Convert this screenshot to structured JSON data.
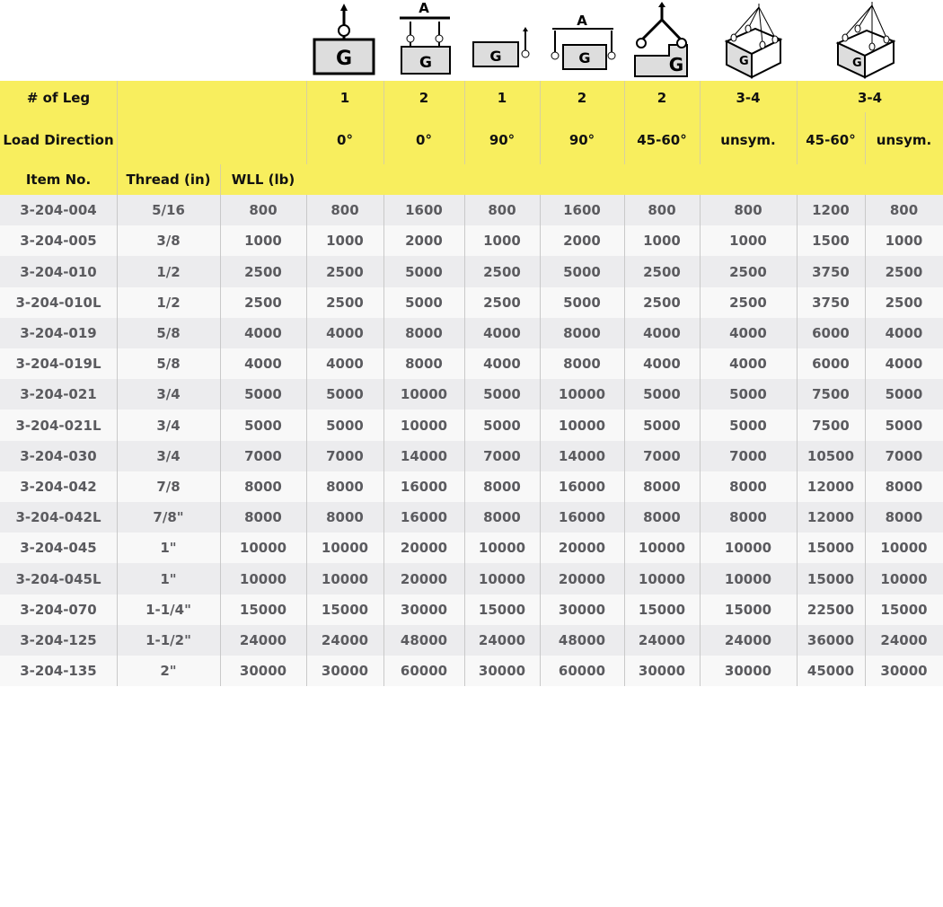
{
  "colors": {
    "header_bg": "#f8ee5e",
    "row_odd": "#ececee",
    "row_even": "#f8f8f8",
    "text": "#5b5b5f"
  },
  "icons": [
    "single-leg-vertical-icon",
    "two-leg-vertical-spreader-icon",
    "single-leg-side-icon",
    "two-leg-side-spreader-icon",
    "two-leg-angled-icon",
    "multi-leg-unsymmetric-icon",
    "multi-leg-angled-icon"
  ],
  "header": {
    "legs_label": "# of Leg",
    "direction_label": "Load Direction",
    "item_label": "Item No.",
    "thread_label": "Thread (in)",
    "wll_label": "WLL (lb)",
    "legs": [
      "1",
      "2",
      "1",
      "2",
      "2",
      "3-4",
      "3-4"
    ],
    "directions": [
      "0°",
      "0°",
      "90°",
      "90°",
      "45-60°",
      "unsym.",
      "45-60°",
      "unsym."
    ]
  },
  "rows": [
    [
      "3-204-004",
      "5/16",
      "800",
      "800",
      "1600",
      "800",
      "1600",
      "800",
      "800",
      "1200",
      "800"
    ],
    [
      "3-204-005",
      "3/8",
      "1000",
      "1000",
      "2000",
      "1000",
      "2000",
      "1000",
      "1000",
      "1500",
      "1000"
    ],
    [
      "3-204-010",
      "1/2",
      "2500",
      "2500",
      "5000",
      "2500",
      "5000",
      "2500",
      "2500",
      "3750",
      "2500"
    ],
    [
      "3-204-010L",
      "1/2",
      "2500",
      "2500",
      "5000",
      "2500",
      "5000",
      "2500",
      "2500",
      "3750",
      "2500"
    ],
    [
      "3-204-019",
      "5/8",
      "4000",
      "4000",
      "8000",
      "4000",
      "8000",
      "4000",
      "4000",
      "6000",
      "4000"
    ],
    [
      "3-204-019L",
      "5/8",
      "4000",
      "4000",
      "8000",
      "4000",
      "8000",
      "4000",
      "4000",
      "6000",
      "4000"
    ],
    [
      "3-204-021",
      "3/4",
      "5000",
      "5000",
      "10000",
      "5000",
      "10000",
      "5000",
      "5000",
      "7500",
      "5000"
    ],
    [
      "3-204-021L",
      "3/4",
      "5000",
      "5000",
      "10000",
      "5000",
      "10000",
      "5000",
      "5000",
      "7500",
      "5000"
    ],
    [
      "3-204-030",
      "3/4",
      "7000",
      "7000",
      "14000",
      "7000",
      "14000",
      "7000",
      "7000",
      "10500",
      "7000"
    ],
    [
      "3-204-042",
      "7/8",
      "8000",
      "8000",
      "16000",
      "8000",
      "16000",
      "8000",
      "8000",
      "12000",
      "8000"
    ],
    [
      "3-204-042L",
      "7/8\"",
      "8000",
      "8000",
      "16000",
      "8000",
      "16000",
      "8000",
      "8000",
      "12000",
      "8000"
    ],
    [
      "3-204-045",
      "1\"",
      "10000",
      "10000",
      "20000",
      "10000",
      "20000",
      "10000",
      "10000",
      "15000",
      "10000"
    ],
    [
      "3-204-045L",
      "1\"",
      "10000",
      "10000",
      "20000",
      "10000",
      "20000",
      "10000",
      "10000",
      "15000",
      "10000"
    ],
    [
      "3-204-070",
      "1-1/4\"",
      "15000",
      "15000",
      "30000",
      "15000",
      "30000",
      "15000",
      "15000",
      "22500",
      "15000"
    ],
    [
      "3-204-125",
      "1-1/2\"",
      "24000",
      "24000",
      "48000",
      "24000",
      "48000",
      "24000",
      "24000",
      "36000",
      "24000"
    ],
    [
      "3-204-135",
      "2\"",
      "30000",
      "30000",
      "60000",
      "30000",
      "60000",
      "30000",
      "30000",
      "45000",
      "30000"
    ]
  ]
}
